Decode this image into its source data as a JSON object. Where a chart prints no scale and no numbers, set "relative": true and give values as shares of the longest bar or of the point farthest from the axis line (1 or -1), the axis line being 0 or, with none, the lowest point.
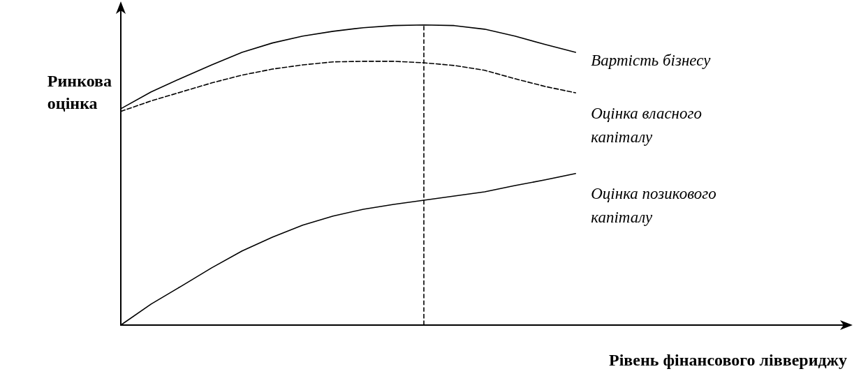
{
  "chart_data": {
    "type": "line",
    "relative": true,
    "xlabel": "Рівень фінансового ліввериджу",
    "ylabel": "Ринкова оцінка",
    "grid": false,
    "legend": false,
    "marker": "none",
    "categories": [
      null,
      null,
      null,
      null,
      null,
      null,
      null,
      null,
      null,
      null,
      null,
      null,
      null,
      null,
      null,
      null,
      null,
      null,
      null,
      null,
      null,
      null,
      null,
      null,
      null
    ],
    "series": [
      {
        "name": "Вартість бізнесу",
        "color": "#000000",
        "line_style": "solid",
        "values": [
          0.721,
          0.777,
          0.823,
          0.867,
          0.909,
          0.94,
          0.963,
          0.979,
          0.991,
          0.998,
          1.0,
          0.998,
          0.986,
          0.963,
          0.935,
          0.909,
          null,
          null,
          null,
          null,
          null,
          null,
          null,
          null,
          null
        ]
      },
      {
        "name": "Оцінка власного капіталу",
        "color": "#000000",
        "line_style": "dashed",
        "values": [
          0.712,
          0.747,
          0.777,
          0.807,
          0.833,
          0.853,
          0.867,
          0.877,
          0.879,
          0.879,
          0.874,
          0.865,
          0.849,
          0.821,
          0.795,
          0.774,
          null,
          null,
          null,
          null,
          null,
          null,
          null,
          null,
          null
        ]
      },
      {
        "name": "Оцінка позикового капіталу",
        "color": "#000000",
        "line_style": "solid",
        "values": [
          0,
          0.07,
          0.13,
          0.191,
          0.247,
          0.293,
          0.333,
          0.363,
          0.386,
          0.402,
          0.416,
          0.43,
          0.444,
          0.465,
          0.484,
          0.505,
          null,
          null,
          null,
          null,
          null,
          null,
          null,
          null,
          null
        ]
      }
    ]
  }
}
